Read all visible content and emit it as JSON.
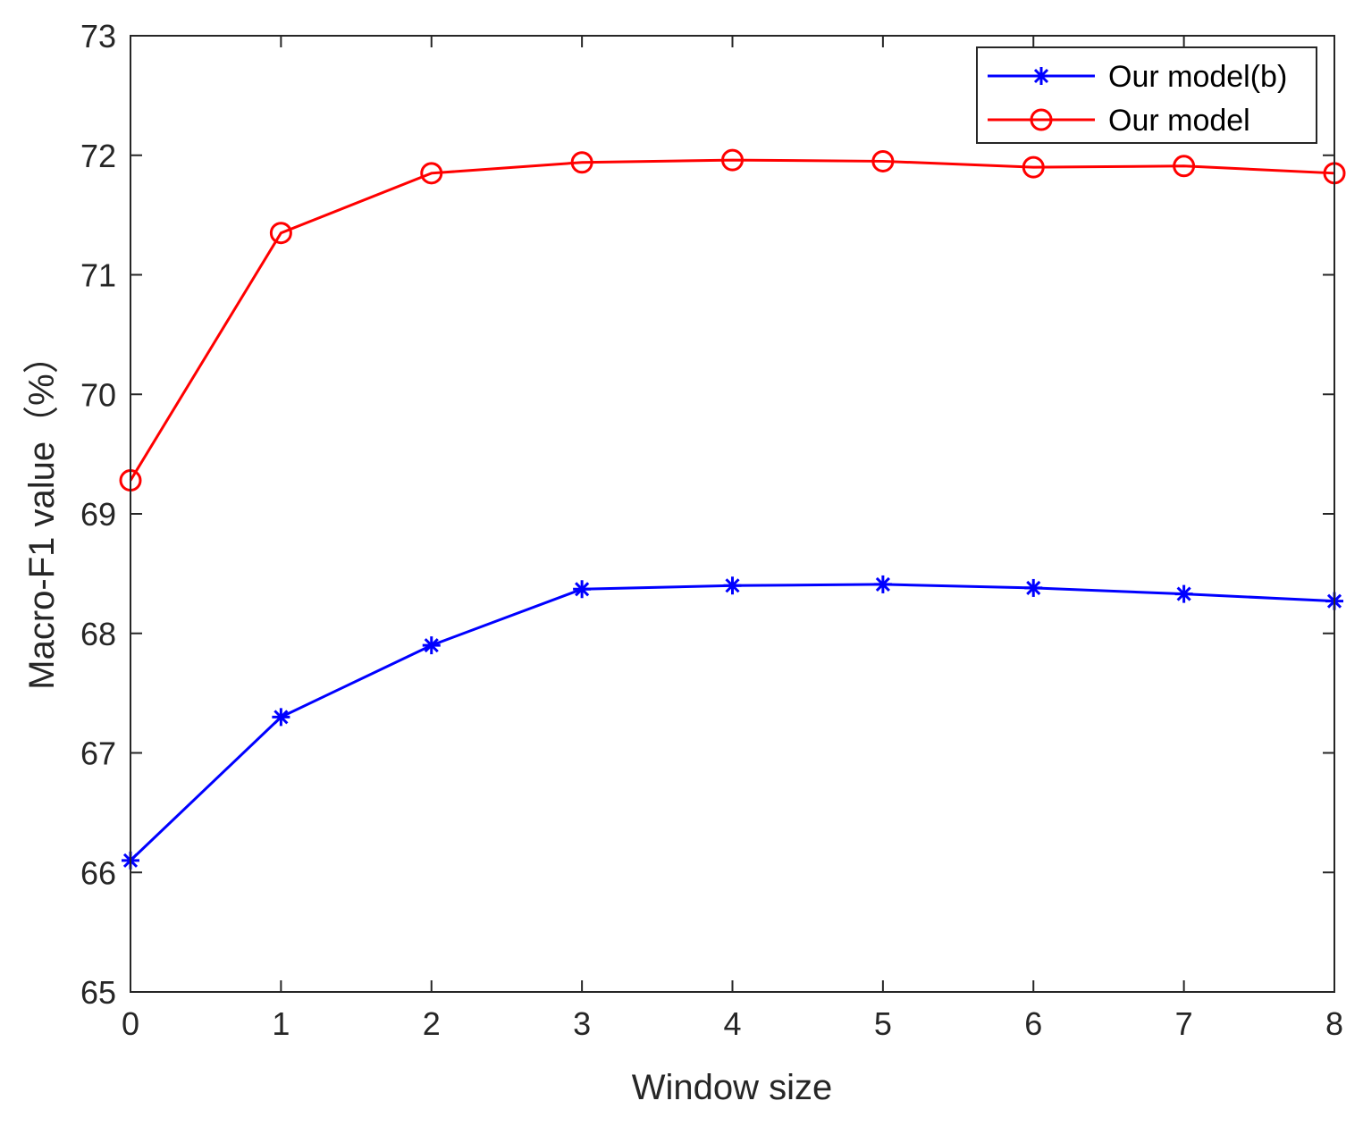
{
  "chart_data": {
    "type": "line",
    "xlabel": "Window size",
    "ylabel": "Macro-F1 value（%）",
    "xlim": [
      0,
      8
    ],
    "ylim": [
      65,
      73
    ],
    "x": [
      0,
      1,
      2,
      3,
      4,
      5,
      6,
      7,
      8
    ],
    "xticks": [
      "0",
      "1",
      "2",
      "3",
      "4",
      "5",
      "6",
      "7",
      "8"
    ],
    "yticks": [
      "65",
      "66",
      "67",
      "68",
      "69",
      "70",
      "71",
      "72",
      "73"
    ],
    "grid": false,
    "legend_position": "top-right",
    "series": [
      {
        "name": "Our model(b)",
        "color": "#0000ff",
        "marker": "asterisk",
        "values": [
          66.1,
          67.3,
          67.9,
          68.37,
          68.4,
          68.41,
          68.38,
          68.33,
          68.27
        ]
      },
      {
        "name": "Our model",
        "color": "#ff0000",
        "marker": "circle",
        "values": [
          69.28,
          71.35,
          71.85,
          71.94,
          71.96,
          71.95,
          71.9,
          71.91,
          71.85
        ]
      }
    ]
  }
}
